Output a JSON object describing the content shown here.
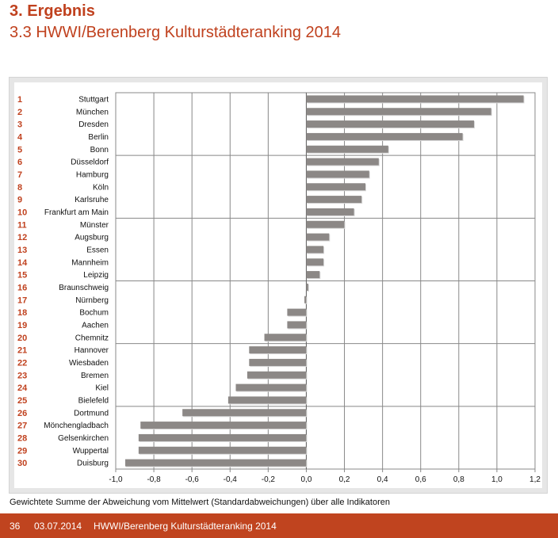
{
  "header": {
    "title": "3. Ergebnis",
    "subtitle": "3.3 HWWI/Berenberg Kulturstädteranking 2014"
  },
  "caption": "Gewichtete Summe der Abweichung vom Mittelwert (Standardabweichungen) über alle Indikatoren",
  "footer": {
    "page": "36",
    "date": "03.07.2014",
    "text": "HWWI/Berenberg Kulturstädteranking 2014"
  },
  "colors": {
    "accent": "#c0411e",
    "bar": "#8c8886",
    "grid": "#888888"
  },
  "chart_data": {
    "type": "bar",
    "orientation": "horizontal",
    "xlim": [
      -1.0,
      1.2
    ],
    "xticks": [
      "-1,0",
      "-0,8",
      "-0,6",
      "-0,4",
      "-0,2",
      "0,0",
      "0,2",
      "0,4",
      "0,6",
      "0,8",
      "1,0",
      "1,2"
    ],
    "xtick_values": [
      -1.0,
      -0.8,
      -0.6,
      -0.4,
      -0.2,
      0.0,
      0.2,
      0.4,
      0.6,
      0.8,
      1.0,
      1.2
    ],
    "grid": true,
    "ranks": [
      "1",
      "2",
      "3",
      "4",
      "5",
      "6",
      "7",
      "8",
      "9",
      "10",
      "11",
      "12",
      "13",
      "14",
      "15",
      "16",
      "17",
      "18",
      "19",
      "20",
      "21",
      "22",
      "23",
      "24",
      "25",
      "26",
      "27",
      "28",
      "29",
      "30"
    ],
    "categories": [
      "Stuttgart",
      "München",
      "Dresden",
      "Berlin",
      "Bonn",
      "Düsseldorf",
      "Hamburg",
      "Köln",
      "Karlsruhe",
      "Frankfurt am Main",
      "Münster",
      "Augsburg",
      "Essen",
      "Mannheim",
      "Leipzig",
      "Braunschweig",
      "Nürnberg",
      "Bochum",
      "Aachen",
      "Chemnitz",
      "Hannover",
      "Wiesbaden",
      "Bremen",
      "Kiel",
      "Bielefeld",
      "Dortmund",
      "Mönchengladbach",
      "Gelsenkirchen",
      "Wuppertal",
      "Duisburg"
    ],
    "values": [
      1.14,
      0.97,
      0.88,
      0.82,
      0.43,
      0.38,
      0.33,
      0.31,
      0.29,
      0.25,
      0.2,
      0.12,
      0.09,
      0.09,
      0.07,
      0.01,
      -0.01,
      -0.1,
      -0.1,
      -0.22,
      -0.3,
      -0.3,
      -0.31,
      -0.37,
      -0.41,
      -0.65,
      -0.87,
      -0.88,
      -0.88,
      -0.95
    ]
  }
}
